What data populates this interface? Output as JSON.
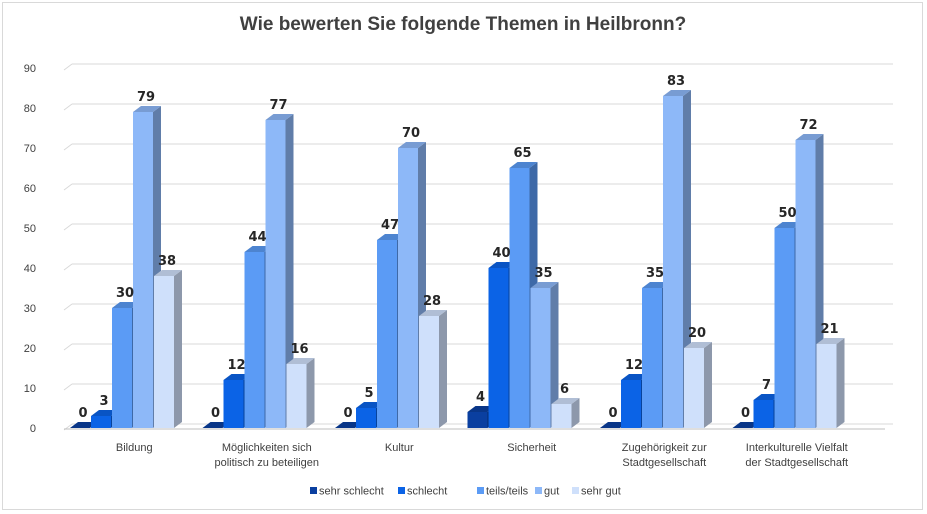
{
  "chart_data": {
    "type": "bar",
    "title": "Wie bewerten Sie folgende Themen in Heilbronn?",
    "categories": [
      [
        "Bildung"
      ],
      [
        "Möglichkeiten sich",
        "politisch zu beteiligen"
      ],
      [
        "Kultur"
      ],
      [
        "Sicherheit"
      ],
      [
        "Zugehörigkeit zur",
        "Stadtgesellschaft"
      ],
      [
        "Interkulturelle Vielfalt",
        "der Stadtgesellschaft"
      ]
    ],
    "series": [
      {
        "name": "sehr schlecht",
        "color": "#0a3fa0",
        "values": [
          0,
          0,
          0,
          4,
          0,
          0
        ]
      },
      {
        "name": "schlecht",
        "color": "#0b63e6",
        "values": [
          3,
          12,
          5,
          40,
          12,
          7
        ]
      },
      {
        "name": "teils/teils",
        "color": "#5b9bf5",
        "values": [
          30,
          44,
          47,
          65,
          35,
          50
        ]
      },
      {
        "name": "gut",
        "color": "#8db8f8",
        "values": [
          79,
          77,
          70,
          35,
          83,
          72
        ]
      },
      {
        "name": "sehr gut",
        "color": "#cfe0fb",
        "values": [
          38,
          16,
          28,
          6,
          20,
          21
        ]
      }
    ],
    "ylim": [
      0,
      90
    ],
    "yticks": [
      0,
      10,
      20,
      30,
      40,
      50,
      60,
      70,
      80,
      90
    ],
    "grid": true,
    "legend_position": "bottom",
    "bar_style": "3d"
  }
}
